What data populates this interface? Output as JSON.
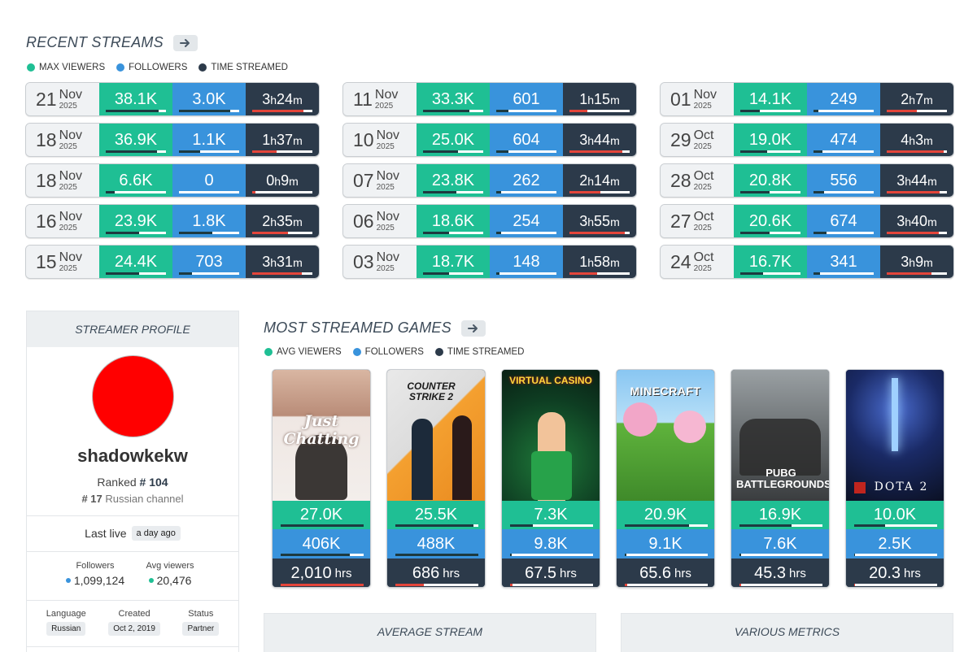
{
  "recent": {
    "title": "RECENT STREAMS",
    "legend": [
      {
        "label": "MAX VIEWERS",
        "color": "#1fbf94"
      },
      {
        "label": "FOLLOWERS",
        "color": "#3993dc"
      },
      {
        "label": "TIME STREAMED",
        "color": "#2c3a4a"
      }
    ],
    "columns": [
      [
        {
          "day": "21",
          "month": "Nov",
          "year": "2025",
          "viewers": "38.1K",
          "followers": "3.0K",
          "h": "3",
          "m": "24",
          "vbar": 0.88,
          "fbar": 0.85,
          "tbar": 0.85
        },
        {
          "day": "18",
          "month": "Nov",
          "year": "2025",
          "viewers": "36.9K",
          "followers": "1.1K",
          "h": "1",
          "m": "37",
          "vbar": 0.85,
          "fbar": 0.35,
          "tbar": 0.4
        },
        {
          "day": "18",
          "month": "Nov",
          "year": "2025",
          "viewers": "6.6K",
          "followers": "0",
          "h": "0",
          "m": "9",
          "vbar": 0.15,
          "fbar": 0.0,
          "tbar": 0.05
        },
        {
          "day": "16",
          "month": "Nov",
          "year": "2025",
          "viewers": "23.9K",
          "followers": "1.8K",
          "h": "2",
          "m": "35",
          "vbar": 0.55,
          "fbar": 0.55,
          "tbar": 0.6
        },
        {
          "day": "15",
          "month": "Nov",
          "year": "2025",
          "viewers": "24.4K",
          "followers": "703",
          "h": "3",
          "m": "31",
          "vbar": 0.56,
          "fbar": 0.22,
          "tbar": 0.82
        }
      ],
      [
        {
          "day": "11",
          "month": "Nov",
          "year": "2025",
          "viewers": "33.3K",
          "followers": "601",
          "h": "1",
          "m": "15",
          "vbar": 0.77,
          "fbar": 0.2,
          "tbar": 0.3
        },
        {
          "day": "10",
          "month": "Nov",
          "year": "2025",
          "viewers": "25.0K",
          "followers": "604",
          "h": "3",
          "m": "44",
          "vbar": 0.58,
          "fbar": 0.2,
          "tbar": 0.88
        },
        {
          "day": "07",
          "month": "Nov",
          "year": "2025",
          "viewers": "23.8K",
          "followers": "262",
          "h": "2",
          "m": "14",
          "vbar": 0.55,
          "fbar": 0.08,
          "tbar": 0.52
        },
        {
          "day": "06",
          "month": "Nov",
          "year": "2025",
          "viewers": "18.6K",
          "followers": "254",
          "h": "3",
          "m": "55",
          "vbar": 0.43,
          "fbar": 0.08,
          "tbar": 0.92
        },
        {
          "day": "03",
          "month": "Nov",
          "year": "2025",
          "viewers": "18.7K",
          "followers": "148",
          "h": "1",
          "m": "58",
          "vbar": 0.43,
          "fbar": 0.05,
          "tbar": 0.46
        }
      ],
      [
        {
          "day": "01",
          "month": "Nov",
          "year": "2025",
          "viewers": "14.1K",
          "followers": "249",
          "h": "2",
          "m": "7",
          "vbar": 0.33,
          "fbar": 0.08,
          "tbar": 0.5
        },
        {
          "day": "29",
          "month": "Oct",
          "year": "2025",
          "viewers": "19.0K",
          "followers": "474",
          "h": "4",
          "m": "3",
          "vbar": 0.44,
          "fbar": 0.15,
          "tbar": 0.95
        },
        {
          "day": "28",
          "month": "Oct",
          "year": "2025",
          "viewers": "20.8K",
          "followers": "556",
          "h": "3",
          "m": "44",
          "vbar": 0.48,
          "fbar": 0.18,
          "tbar": 0.88
        },
        {
          "day": "27",
          "month": "Oct",
          "year": "2025",
          "viewers": "20.6K",
          "followers": "674",
          "h": "3",
          "m": "40",
          "vbar": 0.48,
          "fbar": 0.22,
          "tbar": 0.86
        },
        {
          "day": "24",
          "month": "Oct",
          "year": "2025",
          "viewers": "16.7K",
          "followers": "341",
          "h": "3",
          "m": "9",
          "vbar": 0.38,
          "fbar": 0.11,
          "tbar": 0.74
        }
      ]
    ],
    "unit_h": "h",
    "unit_m": "m"
  },
  "profile": {
    "header": "STREAMER PROFILE",
    "avatar_color": "#ff0000",
    "name": "shadowkekw",
    "ranked_label": "Ranked",
    "rank": "# 104",
    "channel_rank": "# 17",
    "channel_label": "Russian channel",
    "last_live_label": "Last live",
    "last_live_value": "a day ago",
    "followers_label": "Followers",
    "followers_value": "1,099,124",
    "avg_viewers_label": "Avg viewers",
    "avg_viewers_value": "20,476",
    "language_label": "Language",
    "language_value": "Russian",
    "created_label": "Created",
    "created_value": "Oct 2, 2019",
    "status_label": "Status",
    "status_value": "Partner"
  },
  "games": {
    "title": "MOST STREAMED GAMES",
    "legend": [
      {
        "label": "AVG VIEWERS",
        "color": "#1fbf94"
      },
      {
        "label": "FOLLOWERS",
        "color": "#3993dc"
      },
      {
        "label": "TIME STREAMED",
        "color": "#2c3a4a"
      }
    ],
    "hrs_unit": "hrs",
    "items": [
      {
        "art_text": "Just Chatting",
        "avg": "27.0K",
        "followers": "406K",
        "hours": "2,010",
        "vbar": 1.0,
        "fbar": 0.83,
        "tbar": 1.0
      },
      {
        "art_text": "COUNTER STRIKE 2",
        "avg": "25.5K",
        "followers": "488K",
        "hours": "686",
        "vbar": 0.94,
        "fbar": 1.0,
        "tbar": 0.34
      },
      {
        "art_text": "VIRTUAL CASINO",
        "avg": "7.3K",
        "followers": "9.8K",
        "hours": "67.5",
        "vbar": 0.27,
        "fbar": 0.02,
        "tbar": 0.034
      },
      {
        "art_text": "MINECRAFT",
        "avg": "20.9K",
        "followers": "9.1K",
        "hours": "65.6",
        "vbar": 0.77,
        "fbar": 0.02,
        "tbar": 0.033
      },
      {
        "art_text": "PUBG BATTLEGROUNDS",
        "avg": "16.9K",
        "followers": "7.6K",
        "hours": "45.3",
        "vbar": 0.63,
        "fbar": 0.016,
        "tbar": 0.023
      },
      {
        "art_text": "DOTA 2",
        "avg": "10.0K",
        "followers": "2.5K",
        "hours": "20.3",
        "vbar": 0.37,
        "fbar": 0.005,
        "tbar": 0.01
      }
    ]
  },
  "boxes": {
    "average_stream": "AVERAGE STREAM",
    "various_metrics": "VARIOUS METRICS"
  }
}
